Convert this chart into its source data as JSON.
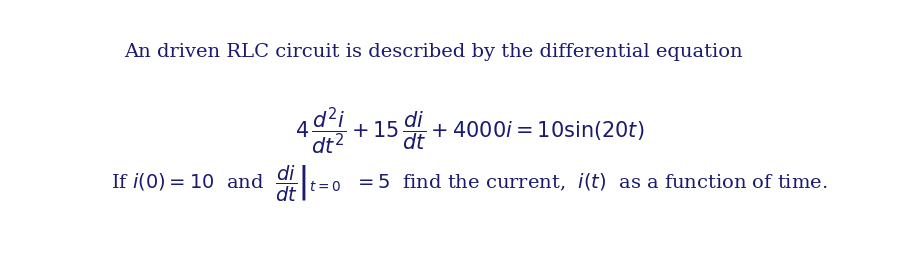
{
  "background_color": "#ffffff",
  "text_color": "#1a1a6e",
  "title_text": "An driven RLC circuit is described by the differential equation",
  "fig_width": 9.16,
  "fig_height": 2.72,
  "dpi": 100,
  "title_fontsize": 14,
  "eq_fontsize": 15,
  "cond_fontsize": 14
}
